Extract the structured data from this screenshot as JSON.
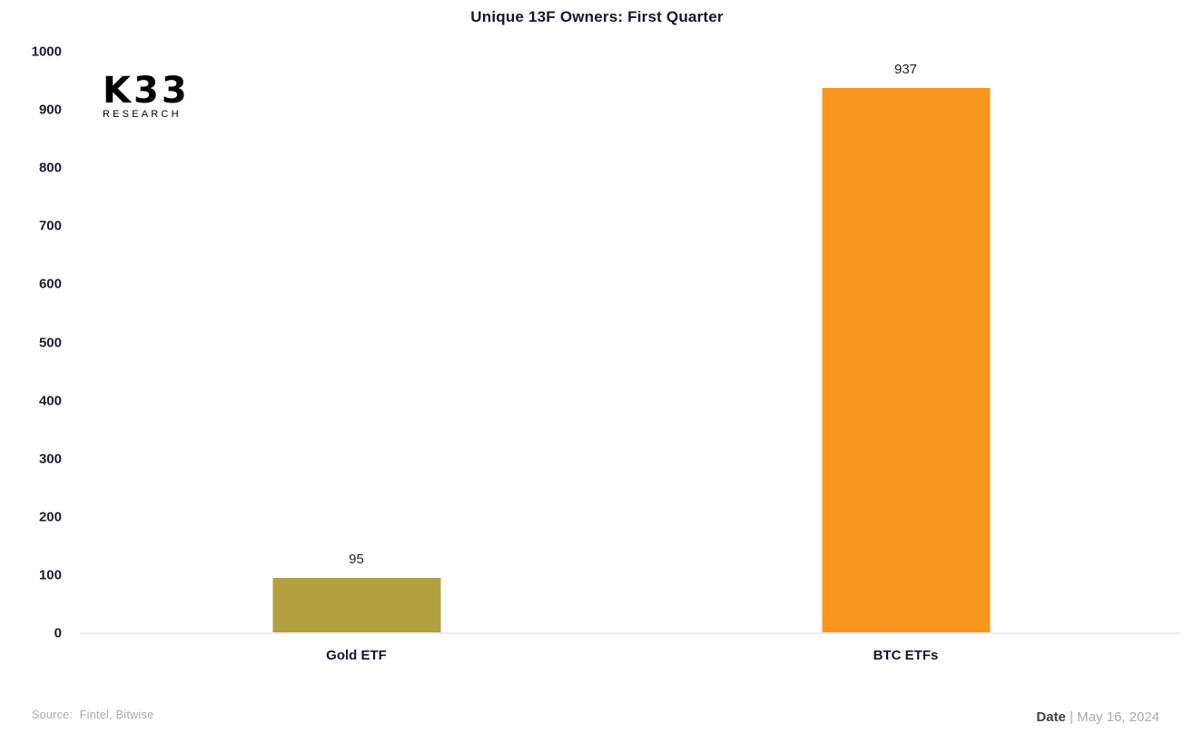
{
  "logo": {
    "line1": "K33",
    "line2": "RESEARCH"
  },
  "footer": {
    "source_label": "Source:",
    "source_value": "Fintel, Bitwise",
    "date_label": "Date",
    "date_separator": " | ",
    "date_value": "May 16, 2024"
  },
  "chart_data": {
    "type": "bar",
    "title": "Unique 13F Owners: First Quarter",
    "categories": [
      "Gold ETF",
      "BTC ETFs"
    ],
    "values": [
      95,
      937
    ],
    "bar_colors": [
      "#b3a13f",
      "#f8961e"
    ],
    "xlabel": "",
    "ylabel": "",
    "ylim": [
      0,
      1000
    ],
    "yticks": [
      0,
      100,
      200,
      300,
      400,
      500,
      600,
      700,
      800,
      900,
      1000
    ],
    "grid": false,
    "legend": "none",
    "value_labels": true
  }
}
